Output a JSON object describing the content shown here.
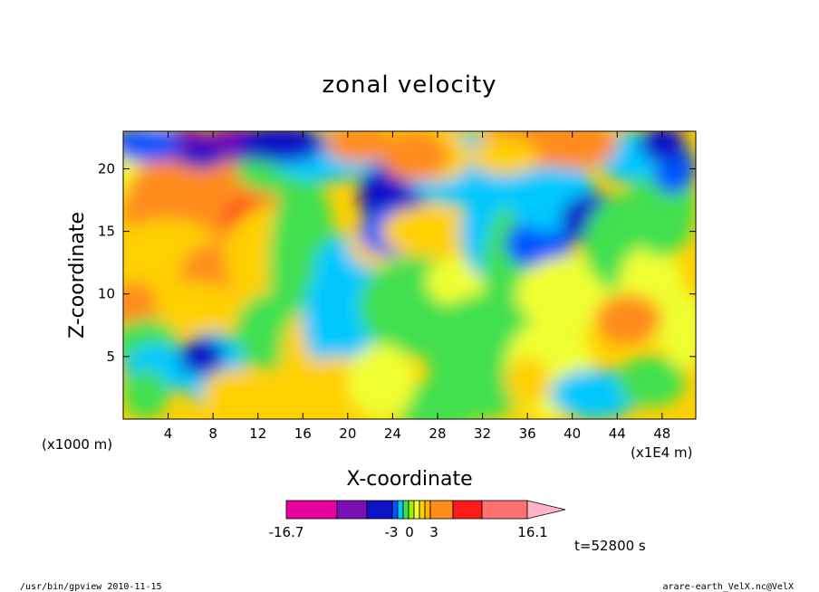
{
  "chart_data": {
    "type": "heatmap",
    "title": "zonal velocity",
    "xlabel": "X-coordinate",
    "ylabel": "Z-coordinate",
    "x_scale_label": "(x1E4 m)",
    "y_scale_label": "(x1000 m)",
    "xlim": [
      0,
      51
    ],
    "ylim": [
      0,
      23
    ],
    "x_ticks": [
      4,
      8,
      12,
      16,
      20,
      24,
      28,
      32,
      36,
      40,
      44,
      48
    ],
    "y_ticks": [
      5,
      10,
      15,
      20
    ],
    "colorbar": {
      "tick_labels": [
        "-16.7",
        "-3",
        "0",
        "3",
        "16.1"
      ],
      "colors": [
        "#e6009e",
        "#7a0fb4",
        "#1111c8",
        "#0055ff",
        "#00c8ff",
        "#3fe04f",
        "#9cf000",
        "#f0ff32",
        "#ffd000",
        "#ffb000",
        "#ff8c1a",
        "#ff1a1a",
        "#ff7070",
        "#ffb4c8"
      ],
      "min": -16.7,
      "max": 16.1
    },
    "time_label": "t=52800 s"
  },
  "footer": {
    "left": "/usr/bin/gpview   2010-11-15",
    "right": "arare-earth_VelX.nc@VelX"
  }
}
